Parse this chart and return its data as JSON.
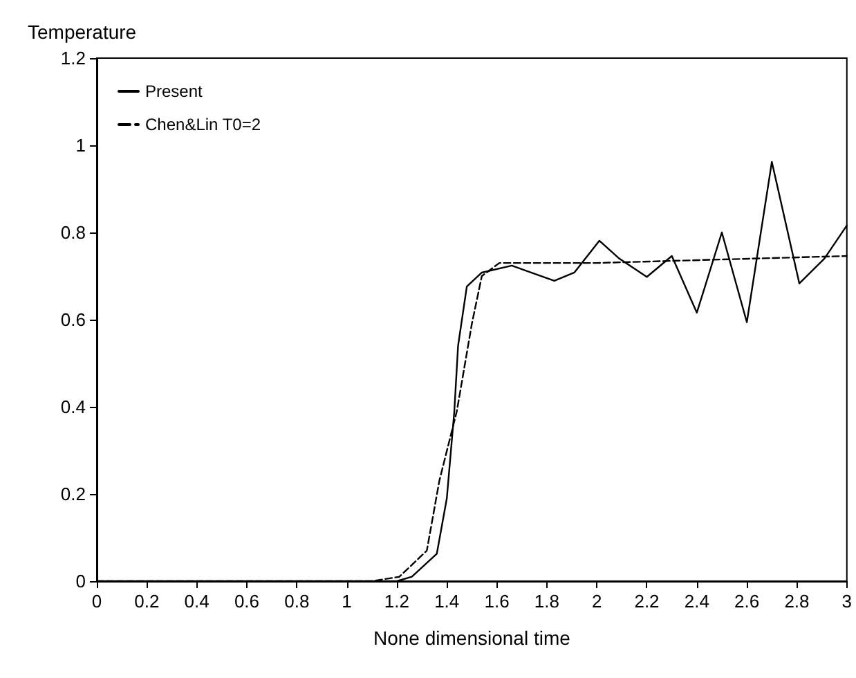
{
  "chart_data": {
    "type": "line",
    "xlabel": "None dimensional time",
    "ylabel": "Temperature",
    "xlim": [
      0,
      3
    ],
    "xticks": [
      0,
      0.2,
      0.4,
      0.6,
      0.8,
      1,
      1.2,
      1.4,
      1.6,
      1.8,
      2,
      2.2,
      2.4,
      2.6,
      2.8,
      3
    ],
    "ylim": [
      0,
      1.2
    ],
    "yticks": [
      0,
      0.2,
      0.4,
      0.6,
      0.8,
      1,
      1.2
    ],
    "grid": false,
    "legend": "top left",
    "marker": "none",
    "series": [
      {
        "name": "Present",
        "color": "#000000",
        "line_style": "solid",
        "x": [
          0,
          0.4,
          0.8,
          1.2,
          1.26,
          1.36,
          1.4,
          1.43,
          1.445,
          1.48,
          1.54,
          1.66,
          1.83,
          1.91,
          2.01,
          2.09,
          2.2,
          2.3,
          2.4,
          2.5,
          2.6,
          2.7,
          2.81,
          2.91,
          3.0
        ],
        "values": [
          0,
          0,
          0,
          0,
          0.01,
          0.063,
          0.19,
          0.39,
          0.54,
          0.676,
          0.708,
          0.724,
          0.689,
          0.708,
          0.781,
          0.74,
          0.698,
          0.746,
          0.616,
          0.8,
          0.594,
          0.962,
          0.683,
          0.74,
          0.816
        ]
      },
      {
        "name": "Chen&Lin T0=2",
        "color": "#000000",
        "line_style": "dashed",
        "x": [
          0,
          0.4,
          0.8,
          1.1,
          1.21,
          1.32,
          1.37,
          1.44,
          1.5,
          1.54,
          1.61,
          2.0,
          2.5,
          3.0
        ],
        "values": [
          0,
          0,
          0,
          0,
          0.01,
          0.07,
          0.23,
          0.39,
          0.59,
          0.7,
          0.73,
          0.73,
          0.738,
          0.746
        ]
      }
    ]
  }
}
